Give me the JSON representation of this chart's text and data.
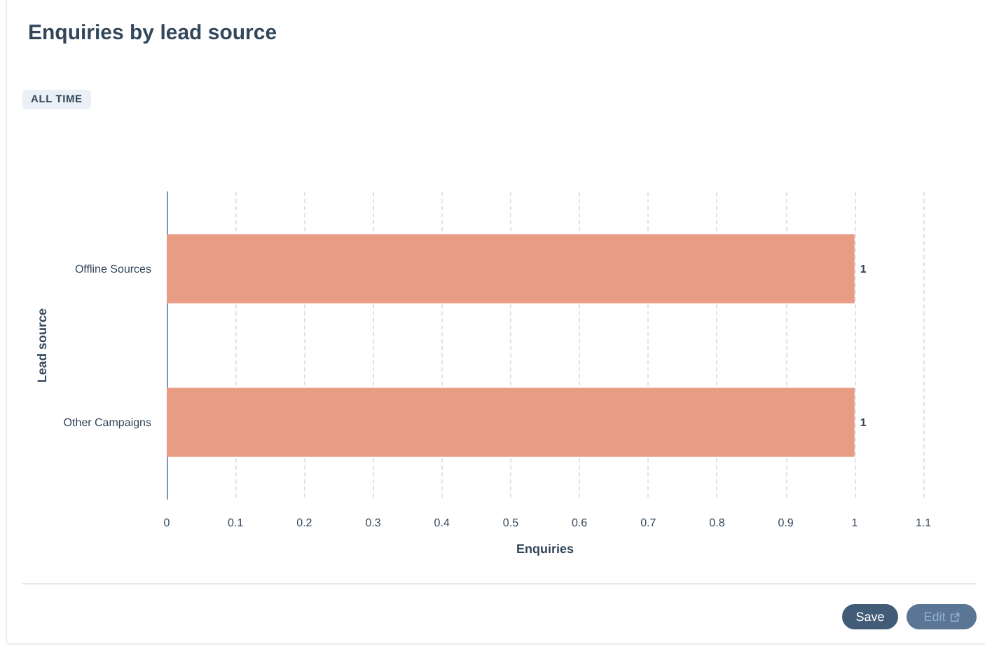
{
  "chart_data": {
    "type": "bar",
    "orientation": "horizontal",
    "title": "Enquiries by lead source",
    "xlabel": "Enquiries",
    "ylabel": "Lead source",
    "categories": [
      "Offline Sources",
      "Other Campaigns"
    ],
    "values": [
      1,
      1
    ],
    "color": "#e99c84",
    "xlim": [
      0,
      1.1
    ],
    "xticks": [
      0,
      0.1,
      0.2,
      0.3,
      0.4,
      0.5,
      0.6,
      0.7,
      0.8,
      0.9,
      1,
      1.1
    ],
    "grid": "x",
    "data_labels": true,
    "annotations": [
      "ALL TIME",
      "Save",
      "Edit"
    ]
  }
}
